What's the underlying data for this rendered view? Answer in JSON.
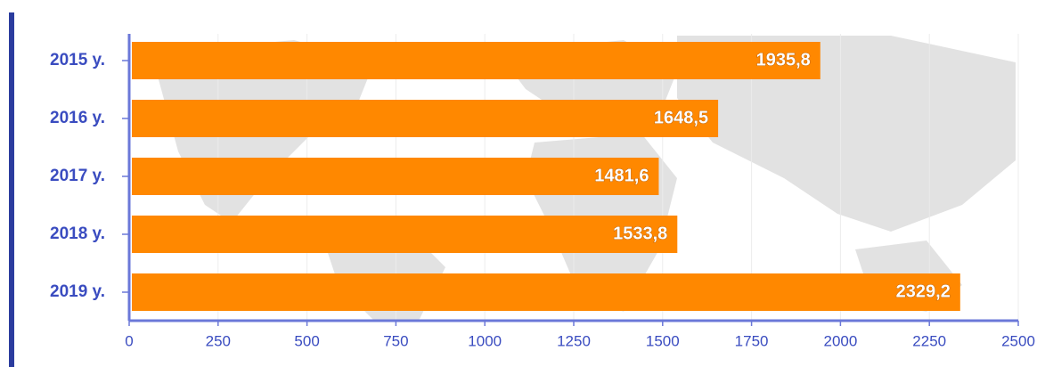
{
  "chart_data": {
    "type": "bar",
    "orientation": "horizontal",
    "categories": [
      "2015 y.",
      "2016 y.",
      "2017 y.",
      "2018 y.",
      "2019 y."
    ],
    "values": [
      1935.8,
      1648.5,
      1481.6,
      1533.8,
      2329.2
    ],
    "value_labels": [
      "1935,8",
      "1648,5",
      "1481,6",
      "1533,8",
      "2329,2"
    ],
    "color": "#ff8800",
    "xlim": [
      0,
      2500
    ],
    "xticks": [
      0,
      250,
      500,
      750,
      1000,
      1250,
      1500,
      1750,
      2000,
      2250,
      2500
    ],
    "grid": true
  }
}
